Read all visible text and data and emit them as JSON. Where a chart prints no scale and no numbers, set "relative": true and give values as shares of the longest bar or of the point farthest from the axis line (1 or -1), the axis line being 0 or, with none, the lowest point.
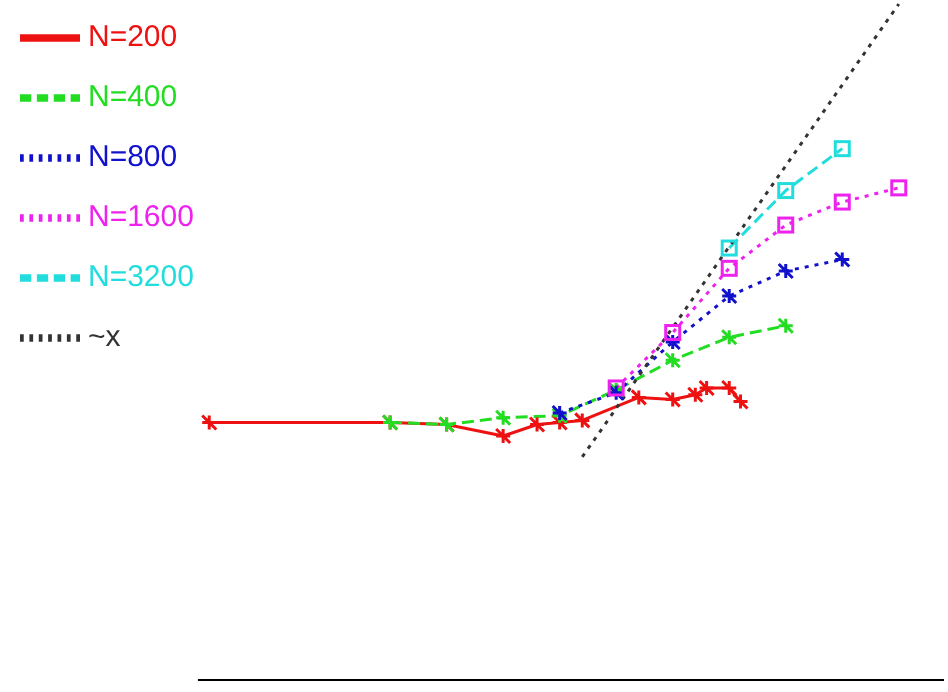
{
  "chart_data": {
    "type": "line",
    "relative": true,
    "tick_labels": false,
    "grid": false,
    "legend": "top left",
    "categories": [
      null,
      null,
      null,
      null,
      null,
      null,
      null,
      null,
      null,
      null,
      null,
      null,
      null,
      null,
      null,
      null,
      null,
      null,
      null,
      null,
      null,
      null,
      null,
      null,
      null,
      null,
      null,
      null,
      null,
      null,
      null,
      null,
      null,
      null,
      null,
      null,
      null,
      null,
      null,
      null,
      null,
      null,
      null,
      null,
      null,
      null,
      null,
      null,
      null,
      null,
      null,
      null,
      null,
      null,
      null,
      null,
      null,
      null,
      null,
      null,
      null,
      null,
      null,
      null,
      null,
      null,
      null
    ],
    "series": [
      {
        "name": "N=200",
        "color": "#ee1111",
        "marker": "cross",
        "line_style": "solid",
        "values": [
          null,
          0.381,
          null,
          null,
          null,
          null,
          null,
          null,
          null,
          null,
          null,
          null,
          null,
          null,
          null,
          null,
          null,
          0.381,
          null,
          null,
          null,
          null,
          0.378,
          null,
          null,
          null,
          null,
          0.361,
          null,
          null,
          0.378,
          null,
          0.381,
          null,
          0.384,
          null,
          null,
          null,
          null,
          0.418,
          null,
          null,
          0.415,
          null,
          0.422,
          0.432,
          null,
          0.432,
          0.412,
          null,
          null,
          null,
          null,
          null,
          null,
          null,
          null,
          null,
          null,
          null,
          null,
          null,
          null,
          null,
          null,
          null,
          null
        ]
      },
      {
        "name": "N=400",
        "color": "#22dd22",
        "marker": "cross",
        "line_style": "dashed",
        "values": [
          null,
          null,
          null,
          null,
          null,
          null,
          null,
          null,
          null,
          null,
          null,
          null,
          null,
          null,
          null,
          null,
          null,
          0.381,
          null,
          null,
          null,
          null,
          0.378,
          null,
          null,
          null,
          null,
          0.388,
          null,
          null,
          null,
          null,
          0.391,
          null,
          null,
          null,
          null,
          0.429,
          null,
          null,
          null,
          null,
          0.473,
          null,
          null,
          null,
          null,
          0.507,
          null,
          null,
          null,
          null,
          0.524,
          null,
          null,
          null,
          null,
          null,
          null,
          null,
          null,
          null,
          null,
          null,
          null,
          null,
          null
        ]
      },
      {
        "name": "N=800",
        "color": "#1111cc",
        "marker": "cross",
        "line_style": "dotted",
        "values": [
          null,
          null,
          null,
          null,
          null,
          null,
          null,
          null,
          null,
          null,
          null,
          null,
          null,
          null,
          null,
          null,
          null,
          null,
          null,
          null,
          null,
          null,
          null,
          null,
          null,
          null,
          null,
          null,
          null,
          null,
          null,
          null,
          0.395,
          null,
          null,
          null,
          null,
          0.425,
          null,
          null,
          null,
          null,
          0.5,
          null,
          null,
          null,
          null,
          0.568,
          null,
          null,
          null,
          null,
          0.605,
          null,
          null,
          null,
          null,
          0.622,
          null,
          null,
          null,
          null,
          null,
          null,
          null,
          null,
          null
        ]
      },
      {
        "name": "N=1600",
        "color": "#ee22ee",
        "marker": "square",
        "line_style": "dotted",
        "values": [
          null,
          null,
          null,
          null,
          null,
          null,
          null,
          null,
          null,
          null,
          null,
          null,
          null,
          null,
          null,
          null,
          null,
          null,
          null,
          null,
          null,
          null,
          null,
          null,
          null,
          null,
          null,
          null,
          null,
          null,
          null,
          null,
          null,
          null,
          null,
          null,
          null,
          0.432,
          null,
          null,
          null,
          null,
          0.514,
          null,
          null,
          null,
          null,
          0.609,
          null,
          null,
          null,
          null,
          0.673,
          null,
          null,
          null,
          null,
          0.707,
          null,
          null,
          null,
          null,
          0.728,
          null,
          null,
          null,
          null
        ]
      },
      {
        "name": "N=3200",
        "color": "#22dddd",
        "marker": "square",
        "line_style": "dashed",
        "values": [
          null,
          null,
          null,
          null,
          null,
          null,
          null,
          null,
          null,
          null,
          null,
          null,
          null,
          null,
          null,
          null,
          null,
          null,
          null,
          null,
          null,
          null,
          null,
          null,
          null,
          null,
          null,
          null,
          null,
          null,
          null,
          null,
          null,
          null,
          null,
          null,
          null,
          null,
          null,
          null,
          null,
          null,
          null,
          null,
          null,
          null,
          null,
          0.639,
          null,
          null,
          null,
          null,
          0.724,
          null,
          null,
          null,
          null,
          0.786,
          null,
          null,
          null,
          null,
          null,
          null,
          null,
          null,
          null
        ]
      },
      {
        "name": "~x",
        "color": "#333333",
        "marker": "none",
        "line_style": "dotted",
        "values": [
          null,
          null,
          null,
          null,
          null,
          null,
          null,
          null,
          null,
          null,
          null,
          null,
          null,
          null,
          null,
          null,
          null,
          null,
          null,
          null,
          null,
          null,
          null,
          null,
          null,
          null,
          null,
          null,
          null,
          null,
          null,
          null,
          null,
          null,
          0.33,
          null,
          null,
          null,
          null,
          null,
          null,
          null,
          null,
          null,
          null,
          null,
          null,
          null,
          null,
          null,
          null,
          null,
          null,
          null,
          null,
          null,
          null,
          null,
          null,
          null,
          null,
          null,
          1,
          null,
          null,
          null,
          null
        ]
      }
    ]
  }
}
